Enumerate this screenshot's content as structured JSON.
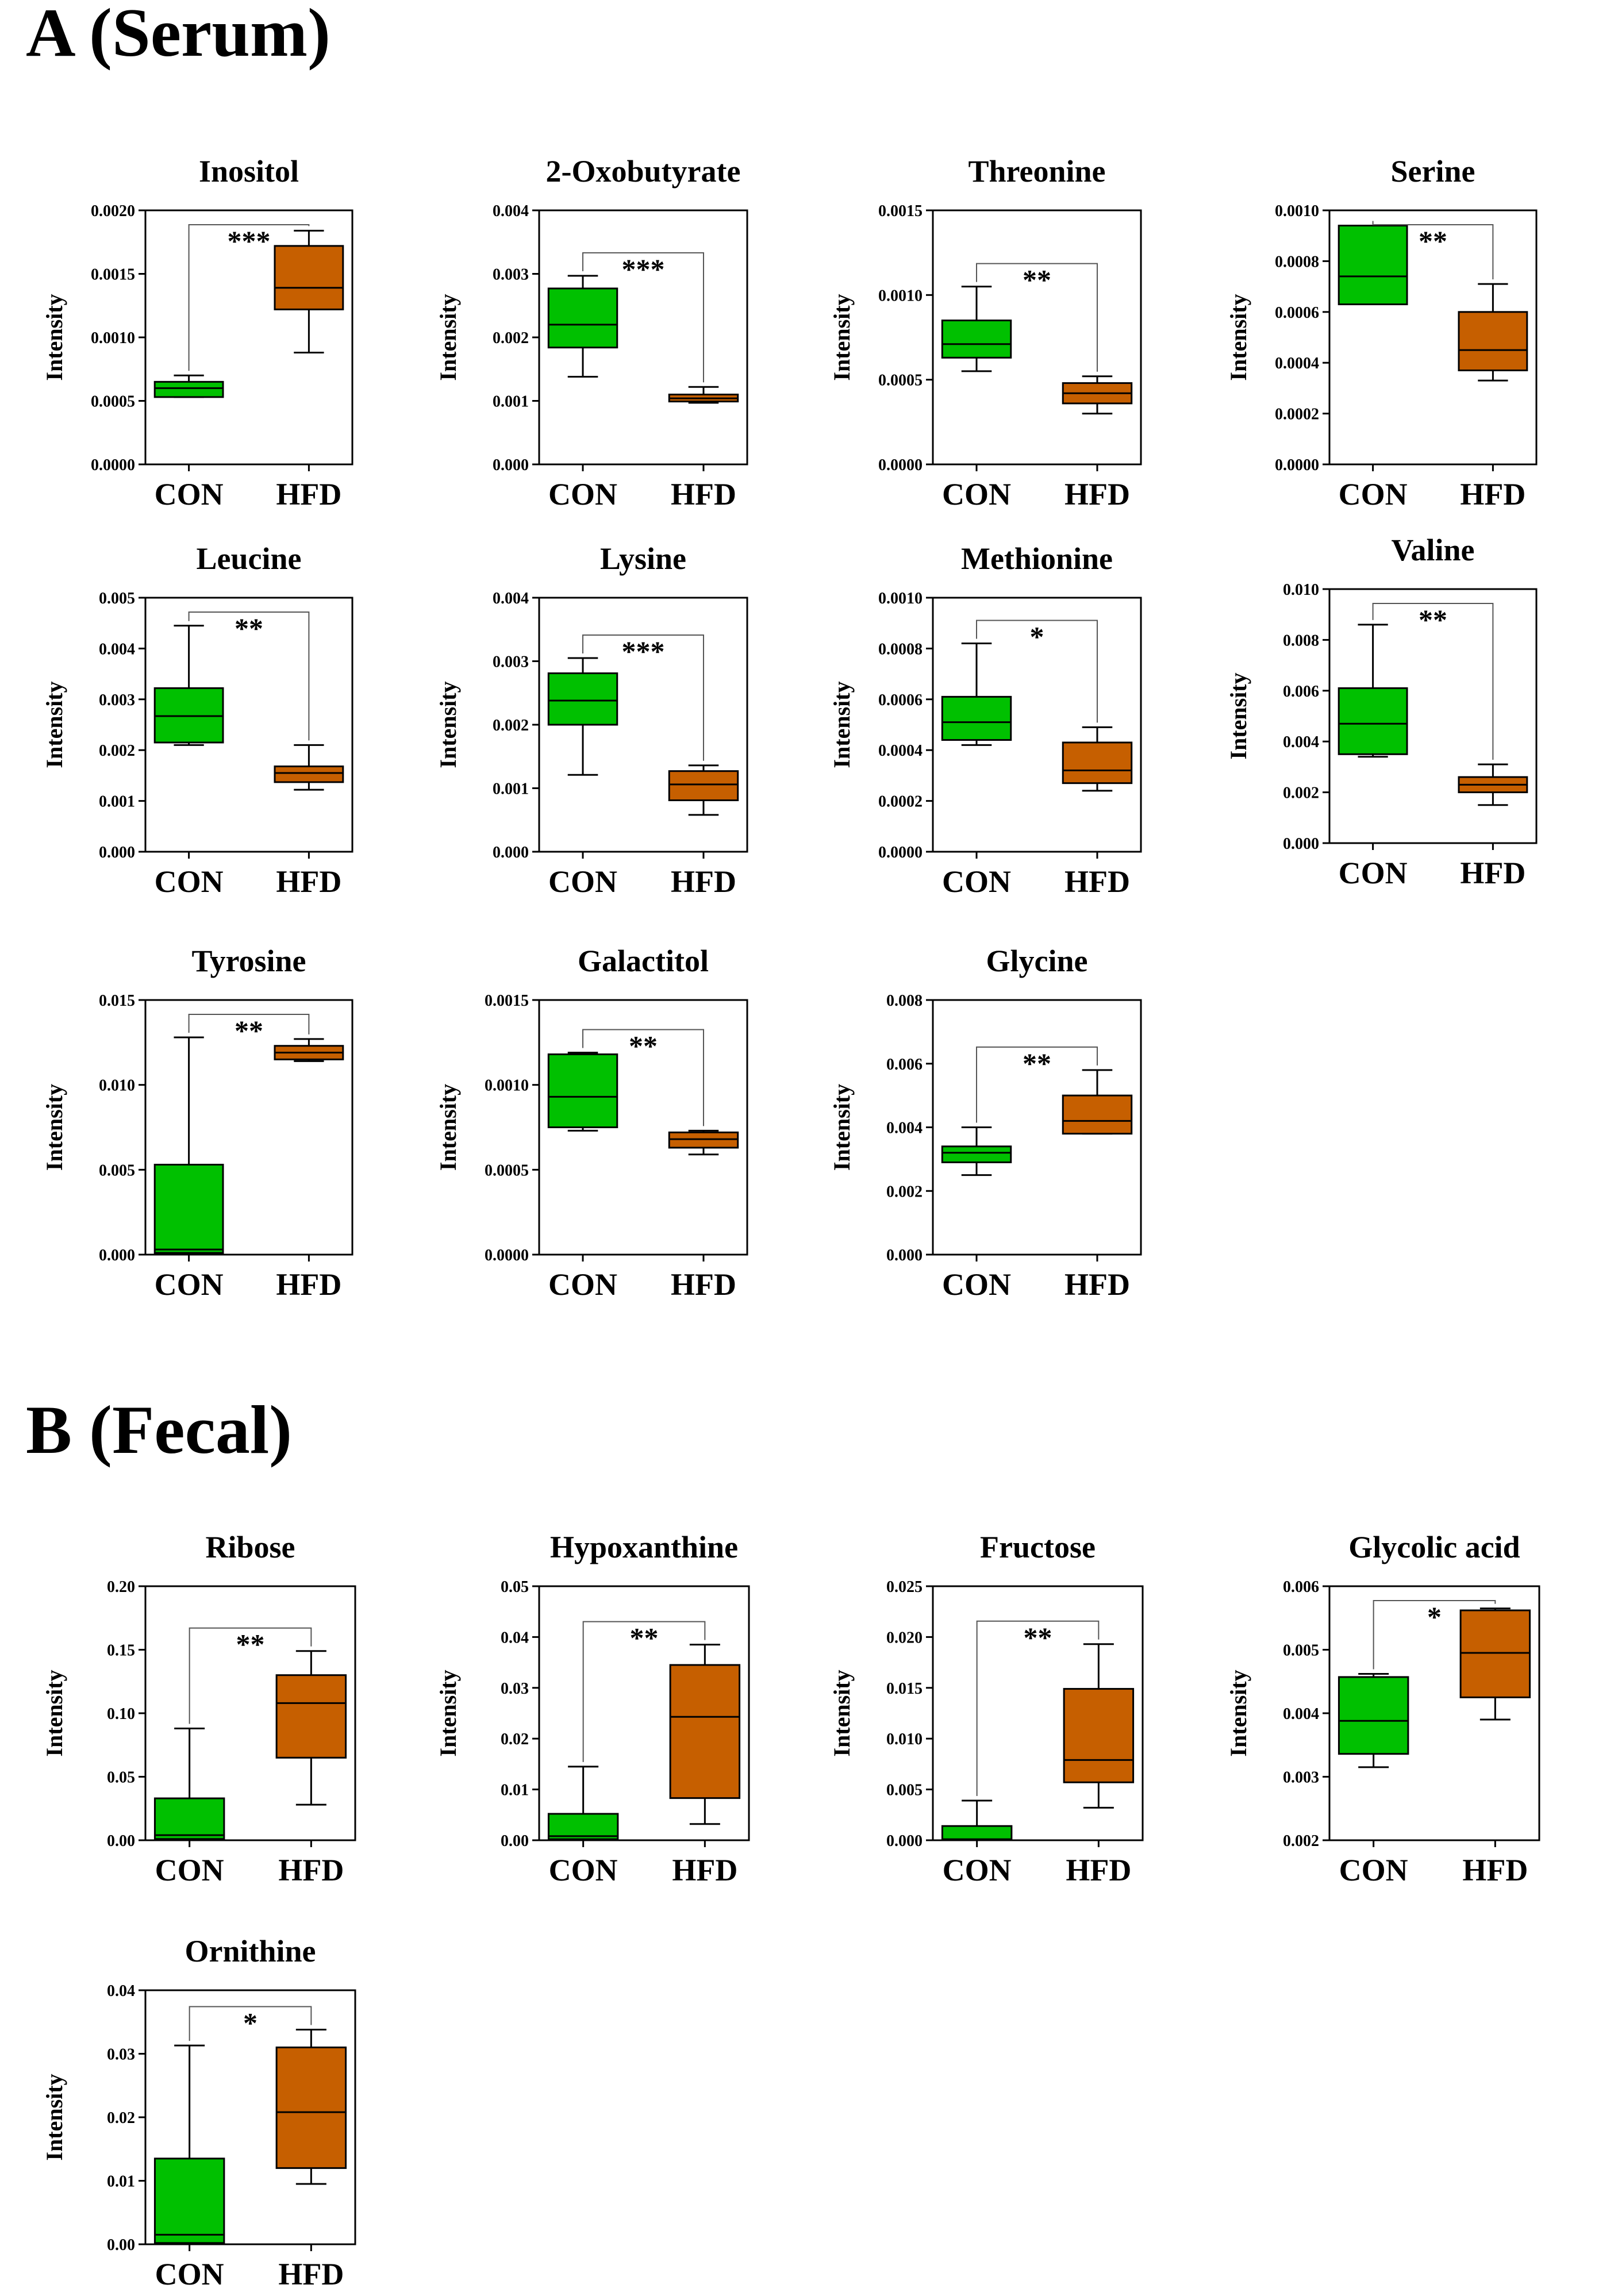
{
  "sections": [
    {
      "label": "A (Serum)"
    },
    {
      "label": "B (Fecal)"
    }
  ],
  "colors": {
    "con": "#00c000",
    "hfd": "#c65f00",
    "line": "#000000"
  },
  "chart_data": [
    {
      "type": "box",
      "section": "A (Serum)",
      "title": "Inositol",
      "ylabel": "Intensity",
      "categories": [
        "CON",
        "HFD"
      ],
      "yticks": [
        "0.0000",
        "0.0005",
        "0.0010",
        "0.0015",
        "0.0020"
      ],
      "ylim": [
        0,
        0.002
      ],
      "sig": "***",
      "boxes": [
        {
          "name": "CON",
          "min": 0.00053,
          "q1": 0.00053,
          "median": 0.0006,
          "q3": 0.00065,
          "max": 0.0007
        },
        {
          "name": "HFD",
          "min": 0.00088,
          "q1": 0.00122,
          "median": 0.00139,
          "q3": 0.00172,
          "max": 0.00184
        }
      ]
    },
    {
      "type": "box",
      "section": "A (Serum)",
      "title": "2-Oxobutyrate",
      "ylabel": "Intensity",
      "categories": [
        "CON",
        "HFD"
      ],
      "yticks": [
        "0.000",
        "0.001",
        "0.002",
        "0.003",
        "0.004"
      ],
      "ylim": [
        0,
        0.004
      ],
      "sig": "***",
      "boxes": [
        {
          "name": "CON",
          "min": 0.00138,
          "q1": 0.00184,
          "median": 0.0022,
          "q3": 0.00277,
          "max": 0.00297
        },
        {
          "name": "HFD",
          "min": 0.00097,
          "q1": 0.00099,
          "median": 0.00104,
          "q3": 0.0011,
          "max": 0.00122
        }
      ]
    },
    {
      "type": "box",
      "section": "A (Serum)",
      "title": "Threonine",
      "ylabel": "Intensity",
      "categories": [
        "CON",
        "HFD"
      ],
      "yticks": [
        "0.0000",
        "0.0005",
        "0.0010",
        "0.0015"
      ],
      "ylim": [
        0,
        0.0015
      ],
      "sig": "**",
      "boxes": [
        {
          "name": "CON",
          "min": 0.00055,
          "q1": 0.00063,
          "median": 0.00071,
          "q3": 0.00085,
          "max": 0.00105
        },
        {
          "name": "HFD",
          "min": 0.0003,
          "q1": 0.00036,
          "median": 0.00042,
          "q3": 0.00048,
          "max": 0.00052
        }
      ]
    },
    {
      "type": "box",
      "section": "A (Serum)",
      "title": "Serine",
      "ylabel": "Intensity",
      "categories": [
        "CON",
        "HFD"
      ],
      "yticks": [
        "0.0000",
        "0.0002",
        "0.0004",
        "0.0006",
        "0.0008",
        "0.0010"
      ],
      "ylim": [
        0,
        0.001
      ],
      "sig": "**",
      "boxes": [
        {
          "name": "CON",
          "min": 0.00063,
          "q1": 0.00063,
          "median": 0.00074,
          "q3": 0.00094,
          "max": 0.00094
        },
        {
          "name": "HFD",
          "min": 0.00033,
          "q1": 0.00037,
          "median": 0.00045,
          "q3": 0.0006,
          "max": 0.00071
        }
      ]
    },
    {
      "type": "box",
      "section": "A (Serum)",
      "title": "Leucine",
      "ylabel": "Intensity",
      "categories": [
        "CON",
        "HFD"
      ],
      "yticks": [
        "0.000",
        "0.001",
        "0.002",
        "0.003",
        "0.004",
        "0.005"
      ],
      "ylim": [
        0,
        0.005
      ],
      "sig": "**",
      "boxes": [
        {
          "name": "CON",
          "min": 0.0021,
          "q1": 0.00215,
          "median": 0.00267,
          "q3": 0.00322,
          "max": 0.00445
        },
        {
          "name": "HFD",
          "min": 0.00122,
          "q1": 0.00137,
          "median": 0.00155,
          "q3": 0.00168,
          "max": 0.0021
        }
      ]
    },
    {
      "type": "box",
      "section": "A (Serum)",
      "title": "Lysine",
      "ylabel": "Intensity",
      "categories": [
        "CON",
        "HFD"
      ],
      "yticks": [
        "0.000",
        "0.001",
        "0.002",
        "0.003",
        "0.004"
      ],
      "ylim": [
        0,
        0.004
      ],
      "sig": "***",
      "boxes": [
        {
          "name": "CON",
          "min": 0.00121,
          "q1": 0.002,
          "median": 0.00238,
          "q3": 0.00281,
          "max": 0.00305
        },
        {
          "name": "HFD",
          "min": 0.00058,
          "q1": 0.00081,
          "median": 0.00106,
          "q3": 0.00127,
          "max": 0.00136
        }
      ]
    },
    {
      "type": "box",
      "section": "A (Serum)",
      "title": "Methionine",
      "ylabel": "Intensity",
      "categories": [
        "CON",
        "HFD"
      ],
      "yticks": [
        "0.0000",
        "0.0002",
        "0.0004",
        "0.0006",
        "0.0008",
        "0.0010"
      ],
      "ylim": [
        0,
        0.001
      ],
      "sig": "*",
      "boxes": [
        {
          "name": "CON",
          "min": 0.00042,
          "q1": 0.00044,
          "median": 0.00051,
          "q3": 0.00061,
          "max": 0.00082
        },
        {
          "name": "HFD",
          "min": 0.00024,
          "q1": 0.00027,
          "median": 0.00032,
          "q3": 0.00043,
          "max": 0.00049
        }
      ]
    },
    {
      "type": "box",
      "section": "A (Serum)",
      "title": "Valine",
      "ylabel": "Intensity",
      "categories": [
        "CON",
        "HFD"
      ],
      "yticks": [
        "0.000",
        "0.002",
        "0.004",
        "0.006",
        "0.008",
        "0.010"
      ],
      "ylim": [
        0,
        0.01
      ],
      "sig": "**",
      "boxes": [
        {
          "name": "CON",
          "min": 0.0034,
          "q1": 0.0035,
          "median": 0.0047,
          "q3": 0.0061,
          "max": 0.0086
        },
        {
          "name": "HFD",
          "min": 0.0015,
          "q1": 0.002,
          "median": 0.0023,
          "q3": 0.0026,
          "max": 0.0031
        }
      ]
    },
    {
      "type": "box",
      "section": "A (Serum)",
      "title": "Tyrosine",
      "ylabel": "Intensity",
      "categories": [
        "CON",
        "HFD"
      ],
      "yticks": [
        "0.000",
        "0.005",
        "0.010",
        "0.015"
      ],
      "ylim": [
        0,
        0.015
      ],
      "sig": "**",
      "boxes": [
        {
          "name": "CON",
          "min": 0.0,
          "q1": 0.0001,
          "median": 0.0003,
          "q3": 0.0053,
          "max": 0.0128
        },
        {
          "name": "HFD",
          "min": 0.0114,
          "q1": 0.0115,
          "median": 0.0119,
          "q3": 0.0123,
          "max": 0.0127
        }
      ]
    },
    {
      "type": "box",
      "section": "A (Serum)",
      "title": "Galactitol",
      "ylabel": "Intensity",
      "categories": [
        "CON",
        "HFD"
      ],
      "yticks": [
        "0.0000",
        "0.0005",
        "0.0010",
        "0.0015"
      ],
      "ylim": [
        0,
        0.0015
      ],
      "sig": "**",
      "boxes": [
        {
          "name": "CON",
          "min": 0.00073,
          "q1": 0.00075,
          "median": 0.00093,
          "q3": 0.00118,
          "max": 0.00119
        },
        {
          "name": "HFD",
          "min": 0.00059,
          "q1": 0.00063,
          "median": 0.00068,
          "q3": 0.00072,
          "max": 0.00073
        }
      ]
    },
    {
      "type": "box",
      "section": "A (Serum)",
      "title": "Glycine",
      "ylabel": "Intensity",
      "categories": [
        "CON",
        "HFD"
      ],
      "yticks": [
        "0.000",
        "0.002",
        "0.004",
        "0.006",
        "0.008"
      ],
      "ylim": [
        0,
        0.008
      ],
      "sig": "**",
      "boxes": [
        {
          "name": "CON",
          "min": 0.0025,
          "q1": 0.0029,
          "median": 0.0032,
          "q3": 0.0034,
          "max": 0.004
        },
        {
          "name": "HFD",
          "min": 0.0038,
          "q1": 0.0038,
          "median": 0.0042,
          "q3": 0.005,
          "max": 0.0058
        }
      ]
    },
    {
      "type": "box",
      "section": "B (Fecal)",
      "title": "Ribose",
      "ylabel": "Intensity",
      "categories": [
        "CON",
        "HFD"
      ],
      "yticks": [
        "0.00",
        "0.05",
        "0.10",
        "0.15",
        "0.20"
      ],
      "ylim": [
        0,
        0.2
      ],
      "sig": "**",
      "boxes": [
        {
          "name": "CON",
          "min": 0.0,
          "q1": 0.001,
          "median": 0.004,
          "q3": 0.033,
          "max": 0.088
        },
        {
          "name": "HFD",
          "min": 0.028,
          "q1": 0.065,
          "median": 0.108,
          "q3": 0.13,
          "max": 0.149
        }
      ]
    },
    {
      "type": "box",
      "section": "B (Fecal)",
      "title": "Hypoxanthine",
      "ylabel": "Intensity",
      "categories": [
        "CON",
        "HFD"
      ],
      "yticks": [
        "0.00",
        "0.01",
        "0.02",
        "0.03",
        "0.04",
        "0.05"
      ],
      "ylim": [
        0,
        0.05
      ],
      "sig": "**",
      "boxes": [
        {
          "name": "CON",
          "min": 0.0,
          "q1": 0.0002,
          "median": 0.0008,
          "q3": 0.0052,
          "max": 0.0145
        },
        {
          "name": "HFD",
          "min": 0.0032,
          "q1": 0.0083,
          "median": 0.0243,
          "q3": 0.0345,
          "max": 0.0385
        }
      ]
    },
    {
      "type": "box",
      "section": "B (Fecal)",
      "title": "Fructose",
      "ylabel": "Intensity",
      "categories": [
        "CON",
        "HFD"
      ],
      "yticks": [
        "0.000",
        "0.005",
        "0.010",
        "0.015",
        "0.020",
        "0.025"
      ],
      "ylim": [
        0,
        0.025
      ],
      "sig": "**",
      "boxes": [
        {
          "name": "CON",
          "min": 0.0,
          "q1": 0.0,
          "median": 0.0001,
          "q3": 0.0014,
          "max": 0.0039
        },
        {
          "name": "HFD",
          "min": 0.0032,
          "q1": 0.0057,
          "median": 0.0079,
          "q3": 0.0149,
          "max": 0.0193
        }
      ]
    },
    {
      "type": "box",
      "section": "B (Fecal)",
      "title": "Glycolic acid",
      "ylabel": "Intensity",
      "categories": [
        "CON",
        "HFD"
      ],
      "yticks": [
        "0.002",
        "0.003",
        "0.004",
        "0.005",
        "0.006"
      ],
      "ylim": [
        0.002,
        0.006
      ],
      "sig": "*",
      "boxes": [
        {
          "name": "CON",
          "min": 0.00315,
          "q1": 0.00336,
          "median": 0.00388,
          "q3": 0.00457,
          "max": 0.00462
        },
        {
          "name": "HFD",
          "min": 0.0039,
          "q1": 0.00425,
          "median": 0.00495,
          "q3": 0.00562,
          "max": 0.00565
        }
      ]
    },
    {
      "type": "box",
      "section": "B (Fecal)",
      "title": "Ornithine",
      "ylabel": "Intensity",
      "categories": [
        "CON",
        "HFD"
      ],
      "yticks": [
        "0.00",
        "0.01",
        "0.02",
        "0.03",
        "0.04"
      ],
      "ylim": [
        0,
        0.04
      ],
      "sig": "*",
      "boxes": [
        {
          "name": "CON",
          "min": 0.0,
          "q1": 0.0002,
          "median": 0.0015,
          "q3": 0.0135,
          "max": 0.0313
        },
        {
          "name": "HFD",
          "min": 0.0095,
          "q1": 0.012,
          "median": 0.0208,
          "q3": 0.031,
          "max": 0.0338
        }
      ]
    }
  ]
}
